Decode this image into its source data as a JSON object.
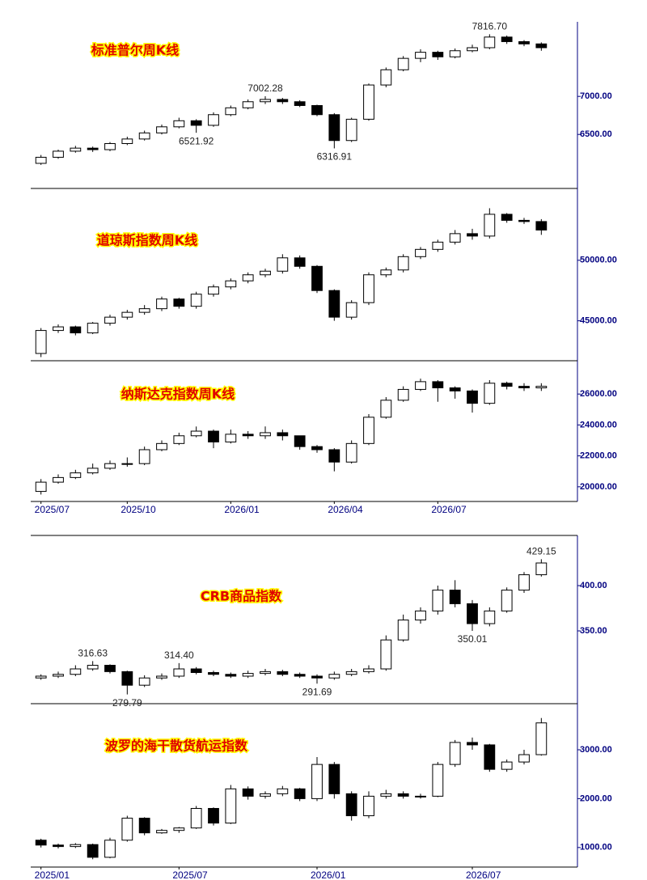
{
  "chart_data": [
    {
      "type": "candlestick",
      "title": "标准普尔周K线",
      "open": [
        6120,
        6200,
        6280,
        6320,
        6300,
        6380,
        6440,
        6520,
        6600,
        6680,
        6620,
        6760,
        6850,
        6930,
        6960,
        6930,
        6880,
        6760,
        6420,
        6700,
        7150,
        7350,
        7500,
        7580,
        7520,
        7600,
        7640,
        7780,
        7720,
        7690
      ],
      "high": [
        6230,
        6300,
        6350,
        6340,
        6400,
        6470,
        6550,
        6630,
        6720,
        6700,
        6790,
        6880,
        6960,
        7002.28,
        6980,
        6950,
        6890,
        6780,
        6720,
        7170,
        7380,
        7530,
        7620,
        7600,
        7630,
        7680,
        7816.7,
        7800,
        7740,
        7710
      ],
      "low": [
        6100,
        6180,
        6260,
        6270,
        6280,
        6360,
        6420,
        6500,
        6580,
        6521.92,
        6600,
        6740,
        6830,
        6900,
        6900,
        6860,
        6740,
        6316.91,
        6400,
        6680,
        7120,
        7330,
        7450,
        7480,
        7500,
        7580,
        7620,
        7690,
        7660,
        7600
      ],
      "close": [
        6200,
        6280,
        6320,
        6300,
        6380,
        6440,
        6520,
        6600,
        6680,
        6620,
        6760,
        6850,
        6930,
        6960,
        6930,
        6880,
        6760,
        6420,
        6700,
        7150,
        7350,
        7500,
        7580,
        7520,
        7600,
        7640,
        7780,
        7720,
        7690,
        7640
      ],
      "high_labels": [
        null,
        null,
        null,
        null,
        null,
        null,
        null,
        null,
        null,
        null,
        null,
        null,
        null,
        "7002.28",
        null,
        null,
        null,
        null,
        null,
        null,
        null,
        null,
        null,
        null,
        null,
        null,
        "7816.70",
        null,
        null,
        null
      ],
      "low_labels": [
        null,
        null,
        null,
        null,
        null,
        null,
        null,
        null,
        null,
        "6521.92",
        null,
        null,
        null,
        null,
        null,
        null,
        null,
        "6316.91",
        null,
        null,
        null,
        null,
        null,
        null,
        null,
        null,
        null,
        null,
        null,
        null
      ],
      "ylim": [
        5790,
        7980
      ],
      "yticks": [
        {
          "value": 6500,
          "label": "6500.00"
        },
        {
          "value": 7000,
          "label": "7000.00"
        }
      ]
    },
    {
      "type": "candlestick",
      "title": "道琼斯指数周K线",
      "open": [
        42300,
        44200,
        44500,
        44000,
        44800,
        45300,
        45700,
        46000,
        46800,
        46200,
        47200,
        47800,
        48300,
        48800,
        49100,
        50200,
        49500,
        47500,
        45300,
        46500,
        48800,
        49200,
        50300,
        50900,
        51500,
        52200,
        52000,
        53800,
        53300,
        53200
      ],
      "high": [
        44400,
        44700,
        44600,
        44900,
        45500,
        45900,
        46300,
        47000,
        46900,
        47400,
        48000,
        48500,
        49000,
        49300,
        50500,
        50400,
        49600,
        47600,
        46700,
        49000,
        49400,
        50500,
        51100,
        51700,
        52500,
        52600,
        54300,
        53900,
        53500,
        53400
      ],
      "low": [
        42000,
        44000,
        43800,
        43900,
        44600,
        45100,
        45500,
        45800,
        46000,
        46000,
        47000,
        47600,
        48100,
        48600,
        48900,
        49300,
        47300,
        45000,
        45100,
        46300,
        48600,
        49000,
        50100,
        50700,
        51300,
        51700,
        51800,
        53100,
        53000,
        52100
      ],
      "close": [
        44200,
        44500,
        44000,
        44800,
        45300,
        45700,
        46000,
        46800,
        46200,
        47200,
        47800,
        48300,
        48800,
        49100,
        50200,
        49500,
        47500,
        45300,
        46500,
        48800,
        49200,
        50300,
        50900,
        51500,
        52200,
        52000,
        53800,
        53300,
        53200,
        52500
      ],
      "ylim": [
        41700,
        55800
      ],
      "yticks": [
        {
          "value": 45000,
          "label": "45000.00"
        },
        {
          "value": 50000,
          "label": "50000.00"
        }
      ]
    },
    {
      "type": "candlestick",
      "title": "纳斯达克指数周K线",
      "open": [
        19700,
        20300,
        20600,
        20900,
        21200,
        21500,
        21500,
        22400,
        22800,
        23300,
        23600,
        22900,
        23400,
        23300,
        23500,
        23300,
        22600,
        22400,
        21600,
        22800,
        24500,
        25600,
        26300,
        26800,
        26400,
        26200,
        25400,
        26700,
        26500,
        26400
      ],
      "high": [
        20500,
        20800,
        21100,
        21500,
        21700,
        21900,
        22600,
        23000,
        23500,
        23900,
        23700,
        23700,
        23600,
        23900,
        23700,
        23300,
        22700,
        22500,
        23000,
        24700,
        25800,
        26500,
        27000,
        26900,
        26500,
        26300,
        26900,
        26800,
        26700,
        26700
      ],
      "low": [
        19500,
        20200,
        20500,
        20800,
        21100,
        21300,
        21400,
        22300,
        22700,
        23200,
        22500,
        22800,
        23100,
        23100,
        23000,
        22400,
        22200,
        21000,
        21500,
        22700,
        24400,
        25500,
        26200,
        25500,
        25700,
        24800,
        25300,
        26300,
        26200,
        26200
      ],
      "close": [
        20300,
        20600,
        20900,
        21200,
        21500,
        21500,
        22400,
        22800,
        23300,
        23600,
        22900,
        23400,
        23300,
        23500,
        23300,
        22600,
        22400,
        21600,
        22800,
        24500,
        25600,
        26300,
        26800,
        26400,
        26200,
        25400,
        26700,
        26500,
        26400,
        26500
      ],
      "categories": [
        "2025/07",
        null,
        null,
        null,
        null,
        "2025/10",
        null,
        null,
        null,
        null,
        null,
        "2026/01",
        null,
        null,
        null,
        null,
        null,
        "2026/04",
        null,
        null,
        null,
        null,
        null,
        "2026/07",
        null,
        null,
        null,
        null,
        null,
        null
      ],
      "ylim": [
        19050,
        28050
      ],
      "yticks": [
        {
          "value": 20000,
          "label": "20000.00"
        },
        {
          "value": 22000,
          "label": "22000.00"
        },
        {
          "value": 24000,
          "label": "24000.00"
        },
        {
          "value": 26000,
          "label": "26000.00"
        }
      ]
    },
    {
      "type": "candlestick",
      "title": "CRB商品指数",
      "open": [
        298,
        300,
        302,
        308,
        312,
        305,
        290,
        298,
        300,
        308,
        304,
        302,
        300,
        303,
        305,
        302,
        300,
        298,
        302,
        305,
        308,
        340,
        362,
        372,
        395,
        380,
        358,
        372,
        395,
        412
      ],
      "high": [
        302,
        305,
        312,
        316.63,
        313,
        306,
        301,
        303,
        314.4,
        310,
        306,
        304,
        306,
        308,
        307,
        304,
        302,
        305,
        308,
        312,
        345,
        368,
        376,
        400,
        406,
        384,
        376,
        398,
        415,
        429.15
      ],
      "low": [
        296,
        298,
        300,
        306,
        303,
        279.79,
        288,
        296,
        298,
        302,
        300,
        298,
        298,
        301,
        300,
        298,
        291.69,
        296,
        300,
        303,
        306,
        338,
        358,
        368,
        376,
        350.01,
        355,
        370,
        392,
        410
      ],
      "close": [
        300,
        302,
        308,
        312,
        305,
        290,
        298,
        300,
        308,
        304,
        302,
        300,
        303,
        305,
        302,
        300,
        298,
        302,
        305,
        308,
        340,
        362,
        372,
        395,
        380,
        358,
        372,
        395,
        412,
        425
      ],
      "high_labels": [
        null,
        null,
        null,
        "316.63",
        null,
        null,
        null,
        null,
        "314.40",
        null,
        null,
        null,
        null,
        null,
        null,
        null,
        null,
        null,
        null,
        null,
        null,
        null,
        null,
        null,
        null,
        null,
        null,
        null,
        null,
        "429.15"
      ],
      "low_labels": [
        null,
        null,
        null,
        null,
        null,
        "279.79",
        null,
        null,
        null,
        null,
        null,
        null,
        null,
        null,
        null,
        null,
        "291.69",
        null,
        null,
        null,
        null,
        null,
        null,
        null,
        null,
        "350.01",
        null,
        null,
        null,
        null
      ],
      "ylim": [
        269.6,
        455.4
      ],
      "yticks": [
        {
          "value": 350,
          "label": "350.00"
        },
        {
          "value": 400,
          "label": "400.00"
        }
      ]
    },
    {
      "type": "candlestick",
      "title": "波罗的海干散货航运指数",
      "open": [
        1150,
        1050,
        1020,
        1060,
        800,
        1150,
        1600,
        1300,
        1350,
        1400,
        1800,
        1500,
        2200,
        2050,
        2100,
        2200,
        2000,
        2700,
        2100,
        1650,
        2050,
        2100,
        2050,
        2050,
        2700,
        3150,
        3100,
        2600,
        2750,
        2900
      ],
      "high": [
        1180,
        1080,
        1090,
        1080,
        1200,
        1650,
        1620,
        1380,
        1420,
        1850,
        1820,
        2280,
        2250,
        2150,
        2260,
        2220,
        2850,
        2750,
        2150,
        2150,
        2180,
        2150,
        2100,
        2750,
        3200,
        3250,
        3120,
        2800,
        3000,
        3650
      ],
      "low": [
        1000,
        980,
        990,
        760,
        780,
        1120,
        1250,
        1280,
        1300,
        1380,
        1450,
        1480,
        1980,
        2000,
        2050,
        1950,
        1950,
        2000,
        1550,
        1600,
        2000,
        2000,
        2000,
        2030,
        2650,
        3000,
        2550,
        2550,
        2700,
        2880
      ],
      "close": [
        1050,
        1020,
        1060,
        800,
        1150,
        1600,
        1300,
        1350,
        1400,
        1800,
        1500,
        2200,
        2050,
        2100,
        2200,
        2000,
        2700,
        2100,
        1650,
        2050,
        2100,
        2050,
        2050,
        2700,
        3150,
        3100,
        2600,
        2750,
        2900,
        3550
      ],
      "categories": [
        "2025/01",
        null,
        null,
        null,
        null,
        null,
        null,
        null,
        "2025/07",
        null,
        null,
        null,
        null,
        null,
        null,
        null,
        "2026/01",
        null,
        null,
        null,
        null,
        null,
        null,
        null,
        null,
        "2026/07",
        null,
        null,
        null,
        null
      ],
      "ylim": [
        600,
        3910
      ],
      "yticks": [
        {
          "value": 1000,
          "label": "1000.00"
        },
        {
          "value": 2000,
          "label": "2000.00"
        },
        {
          "value": 3000,
          "label": "3000.00"
        }
      ]
    }
  ]
}
